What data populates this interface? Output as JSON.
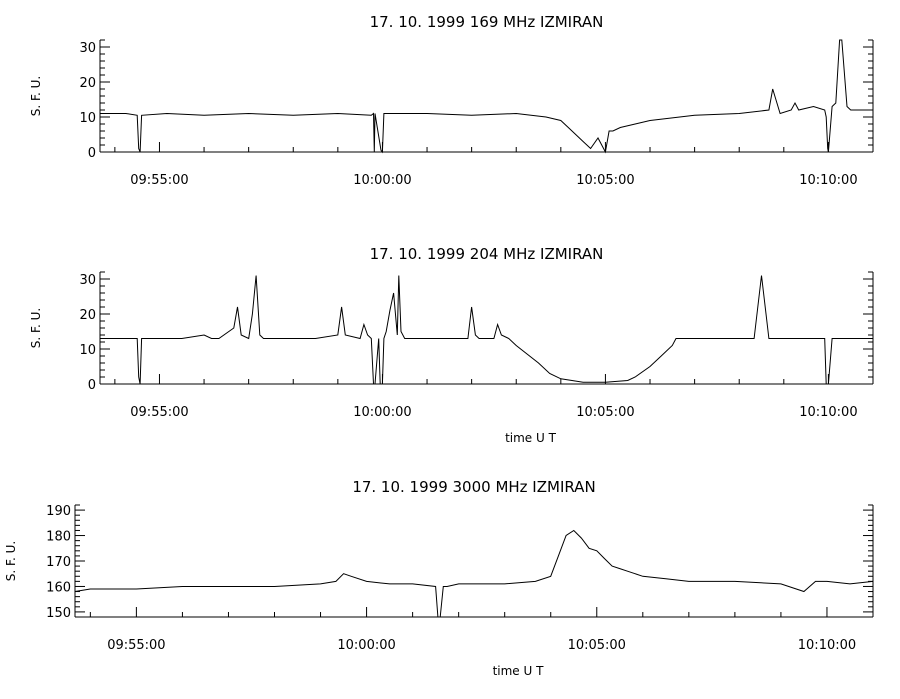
{
  "chart_data": [
    {
      "type": "line",
      "title": "17.  10.  1999    169 MHz    IZMIRAN",
      "ylabel": "S. F. U.",
      "xlabel": "",
      "x_unit": "UT time",
      "xlim": [
        "09:53:40",
        "10:11:00"
      ],
      "ylim": [
        0,
        32
      ],
      "yticks": [
        0,
        10,
        20,
        30
      ],
      "xticks": [
        "09:55:00",
        "10:00:00",
        "10:05:00",
        "10:10:00"
      ],
      "grid": false,
      "line_color": "#000000",
      "series": [
        {
          "x": [
            "09:53:40",
            "09:54:15",
            "09:54:30",
            "09:54:32",
            "09:54:34",
            "09:54:36",
            "09:55:10",
            "09:56:00",
            "09:57:00",
            "09:58:00",
            "09:59:00",
            "09:59:45",
            "09:59:48",
            "09:59:49",
            "09:59:50",
            "09:59:58",
            "10:00:00",
            "10:00:02",
            "10:00:30",
            "10:01:00",
            "10:02:00",
            "10:03:00",
            "10:03:40",
            "10:04:00",
            "10:04:10",
            "10:04:20",
            "10:04:30",
            "10:04:40",
            "10:04:50",
            "10:05:00",
            "10:05:05",
            "10:05:10",
            "10:05:20",
            "10:05:40",
            "10:06:00",
            "10:07:00",
            "10:08:00",
            "10:08:40",
            "10:08:45",
            "10:08:55",
            "10:09:10",
            "10:09:15",
            "10:09:20",
            "10:09:40",
            "10:09:55",
            "10:09:57",
            "10:09:59",
            "10:10:00",
            "10:10:05",
            "10:10:10",
            "10:10:15",
            "10:10:18",
            "10:10:25",
            "10:10:30",
            "10:11:00"
          ],
          "y": [
            11,
            11,
            10.5,
            1,
            0,
            10.5,
            11,
            10.5,
            11,
            10.5,
            11,
            10.5,
            11,
            0,
            11,
            0.5,
            0,
            11,
            11,
            11,
            10.5,
            11,
            10,
            9,
            7,
            5,
            3,
            1,
            4,
            0,
            6,
            6,
            7,
            8,
            9,
            10.5,
            11,
            12,
            18,
            11,
            12,
            14,
            12,
            13,
            12,
            10,
            1,
            0,
            13,
            14,
            32,
            32,
            13,
            12,
            12
          ]
        }
      ]
    },
    {
      "type": "line",
      "title": "17.  10.  1999    204 MHz    IZMIRAN",
      "ylabel": "S. F. U.",
      "xlabel": "time   U T",
      "x_unit": "UT time",
      "xlim": [
        "09:53:40",
        "10:11:00"
      ],
      "ylim": [
        0,
        32
      ],
      "yticks": [
        0,
        10,
        20,
        30
      ],
      "xticks": [
        "09:55:00",
        "10:00:00",
        "10:05:00",
        "10:10:00"
      ],
      "grid": false,
      "line_color": "#000000",
      "series": [
        {
          "x": [
            "09:53:40",
            "09:54:15",
            "09:54:30",
            "09:54:32",
            "09:54:34",
            "09:54:36",
            "09:55:30",
            "09:56:00",
            "09:56:10",
            "09:56:20",
            "09:56:40",
            "09:56:45",
            "09:56:50",
            "09:57:00",
            "09:57:05",
            "09:57:10",
            "09:57:15",
            "09:57:20",
            "09:57:30",
            "09:58:30",
            "09:59:00",
            "09:59:05",
            "09:59:10",
            "09:59:30",
            "09:59:35",
            "09:59:40",
            "09:59:45",
            "09:59:48",
            "09:59:50",
            "09:59:55",
            "09:59:57",
            "10:00:00",
            "10:00:02",
            "10:00:05",
            "10:00:10",
            "10:00:15",
            "10:00:20",
            "10:00:22",
            "10:00:25",
            "10:00:30",
            "10:00:35",
            "10:01:00",
            "10:01:30",
            "10:01:55",
            "10:02:00",
            "10:02:05",
            "10:02:10",
            "10:02:30",
            "10:02:35",
            "10:02:40",
            "10:02:50",
            "10:03:00",
            "10:03:30",
            "10:03:45",
            "10:04:00",
            "10:04:15",
            "10:04:30",
            "10:05:00",
            "10:05:30",
            "10:05:40",
            "10:06:00",
            "10:06:15",
            "10:06:30",
            "10:06:35",
            "10:06:40",
            "10:07:00",
            "10:08:00",
            "10:08:15",
            "10:08:20",
            "10:08:25",
            "10:08:30",
            "10:08:40",
            "10:09:50",
            "10:09:55",
            "10:09:57",
            "10:09:59",
            "10:10:00",
            "10:10:05",
            "10:11:00"
          ],
          "y": [
            13,
            13,
            13,
            2,
            0,
            13,
            13,
            14,
            13,
            13,
            16,
            22,
            14,
            13,
            20,
            31,
            14,
            13,
            13,
            13,
            14,
            22,
            14,
            13,
            17,
            14,
            13,
            0,
            0,
            13,
            0,
            0,
            13,
            15,
            21,
            26,
            14,
            31,
            15,
            13,
            13,
            13,
            13,
            13,
            22,
            14,
            13,
            13,
            17,
            14,
            13,
            11,
            6,
            3,
            1.5,
            1,
            0.5,
            0.5,
            1,
            2,
            5,
            8,
            11,
            13,
            13,
            13,
            13,
            13,
            13,
            22,
            31,
            13,
            13,
            13,
            0,
            0,
            0,
            13,
            13
          ]
        }
      ]
    },
    {
      "type": "line",
      "title": "17.  10.  1999    3000 MHz    IZMIRAN",
      "ylabel": "S. F. U.",
      "xlabel": "time   U T",
      "x_unit": "UT time",
      "xlim": [
        "09:53:40",
        "10:11:00"
      ],
      "ylim": [
        148,
        192
      ],
      "yticks": [
        150,
        160,
        170,
        180,
        190
      ],
      "xticks": [
        "09:55:00",
        "10:00:00",
        "10:05:00",
        "10:10:00"
      ],
      "grid": false,
      "line_color": "#000000",
      "series": [
        {
          "x": [
            "09:53:40",
            "09:54:00",
            "09:55:00",
            "09:56:00",
            "09:57:00",
            "09:58:00",
            "09:59:00",
            "09:59:20",
            "09:59:30",
            "09:59:40",
            "10:00:00",
            "10:00:30",
            "10:01:00",
            "10:01:30",
            "10:01:33",
            "10:01:36",
            "10:01:40",
            "10:01:45",
            "10:02:00",
            "10:03:00",
            "10:03:40",
            "10:04:00",
            "10:04:10",
            "10:04:20",
            "10:04:30",
            "10:04:40",
            "10:04:50",
            "10:05:00",
            "10:05:10",
            "10:05:20",
            "10:05:30",
            "10:05:40",
            "10:06:00",
            "10:06:30",
            "10:07:00",
            "10:08:00",
            "10:09:00",
            "10:09:30",
            "10:09:45",
            "10:10:00",
            "10:10:30",
            "10:11:00"
          ],
          "y": [
            158,
            159,
            159,
            160,
            160,
            160,
            161,
            162,
            165,
            164,
            162,
            161,
            161,
            160,
            148,
            148,
            160,
            160,
            161,
            161,
            162,
            164,
            172,
            180,
            182,
            179,
            175,
            174,
            171,
            168,
            167,
            166,
            164,
            163,
            162,
            162,
            161,
            158,
            162,
            162,
            161,
            162
          ]
        }
      ]
    }
  ]
}
